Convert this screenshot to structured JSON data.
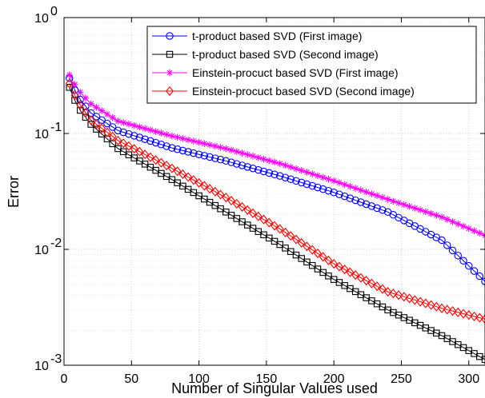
{
  "chart_data": {
    "type": "line",
    "title": "",
    "xlabel": "Number of Singular Values used",
    "ylabel": "Error",
    "xlim": [
      0,
      312
    ],
    "ylim": [
      0.001,
      1
    ],
    "yscale": "log",
    "grid": true,
    "legend_position": "top-right",
    "x_ticks": [
      "0",
      "50",
      "100",
      "150",
      "200",
      "250",
      "300"
    ],
    "x_tick_values": [
      0,
      50,
      100,
      150,
      200,
      250,
      300
    ],
    "y_tick_values": [
      0.001,
      0.01,
      0.1,
      1
    ],
    "y_tick_labels": [
      {
        "base": "10",
        "exp": "-3"
      },
      {
        "base": "10",
        "exp": "-2"
      },
      {
        "base": "10",
        "exp": "-1"
      },
      {
        "base": "10",
        "exp": "0"
      }
    ],
    "x_start": 4,
    "x_step": 4,
    "series": [
      {
        "name": "t-product based SVD (First image)",
        "color": "#0000ff",
        "marker": "circle",
        "anchors": [
          [
            4,
            0.3
          ],
          [
            10,
            0.21
          ],
          [
            20,
            0.15
          ],
          [
            40,
            0.106
          ],
          [
            80,
            0.075
          ],
          [
            120,
            0.058
          ],
          [
            160,
            0.043
          ],
          [
            200,
            0.031
          ],
          [
            240,
            0.021
          ],
          [
            280,
            0.012
          ],
          [
            312,
            0.0053
          ]
        ]
      },
      {
        "name": "t-product based SVD (Second image)",
        "color": "#000000",
        "marker": "square",
        "anchors": [
          [
            4,
            0.25
          ],
          [
            10,
            0.17
          ],
          [
            20,
            0.12
          ],
          [
            40,
            0.074
          ],
          [
            80,
            0.04
          ],
          [
            120,
            0.021
          ],
          [
            160,
            0.011
          ],
          [
            200,
            0.0055
          ],
          [
            240,
            0.003
          ],
          [
            280,
            0.0018
          ],
          [
            312,
            0.00112
          ]
        ]
      },
      {
        "name": "Einstein-procuct based SVD (First image)",
        "color": "#ff00ff",
        "marker": "star",
        "anchors": [
          [
            4,
            0.32
          ],
          [
            10,
            0.24
          ],
          [
            20,
            0.18
          ],
          [
            40,
            0.128
          ],
          [
            80,
            0.095
          ],
          [
            120,
            0.074
          ],
          [
            160,
            0.055
          ],
          [
            200,
            0.039
          ],
          [
            240,
            0.027
          ],
          [
            280,
            0.019
          ],
          [
            312,
            0.0132
          ]
        ]
      },
      {
        "name": "Einstein-procuct based SVD (Second image)",
        "color": "#ff0000",
        "marker": "diamond",
        "anchors": [
          [
            4,
            0.27
          ],
          [
            10,
            0.19
          ],
          [
            20,
            0.13
          ],
          [
            40,
            0.087
          ],
          [
            80,
            0.05
          ],
          [
            120,
            0.028
          ],
          [
            160,
            0.015
          ],
          [
            200,
            0.0075
          ],
          [
            240,
            0.0043
          ],
          [
            280,
            0.0031
          ],
          [
            312,
            0.0025
          ]
        ]
      }
    ]
  }
}
